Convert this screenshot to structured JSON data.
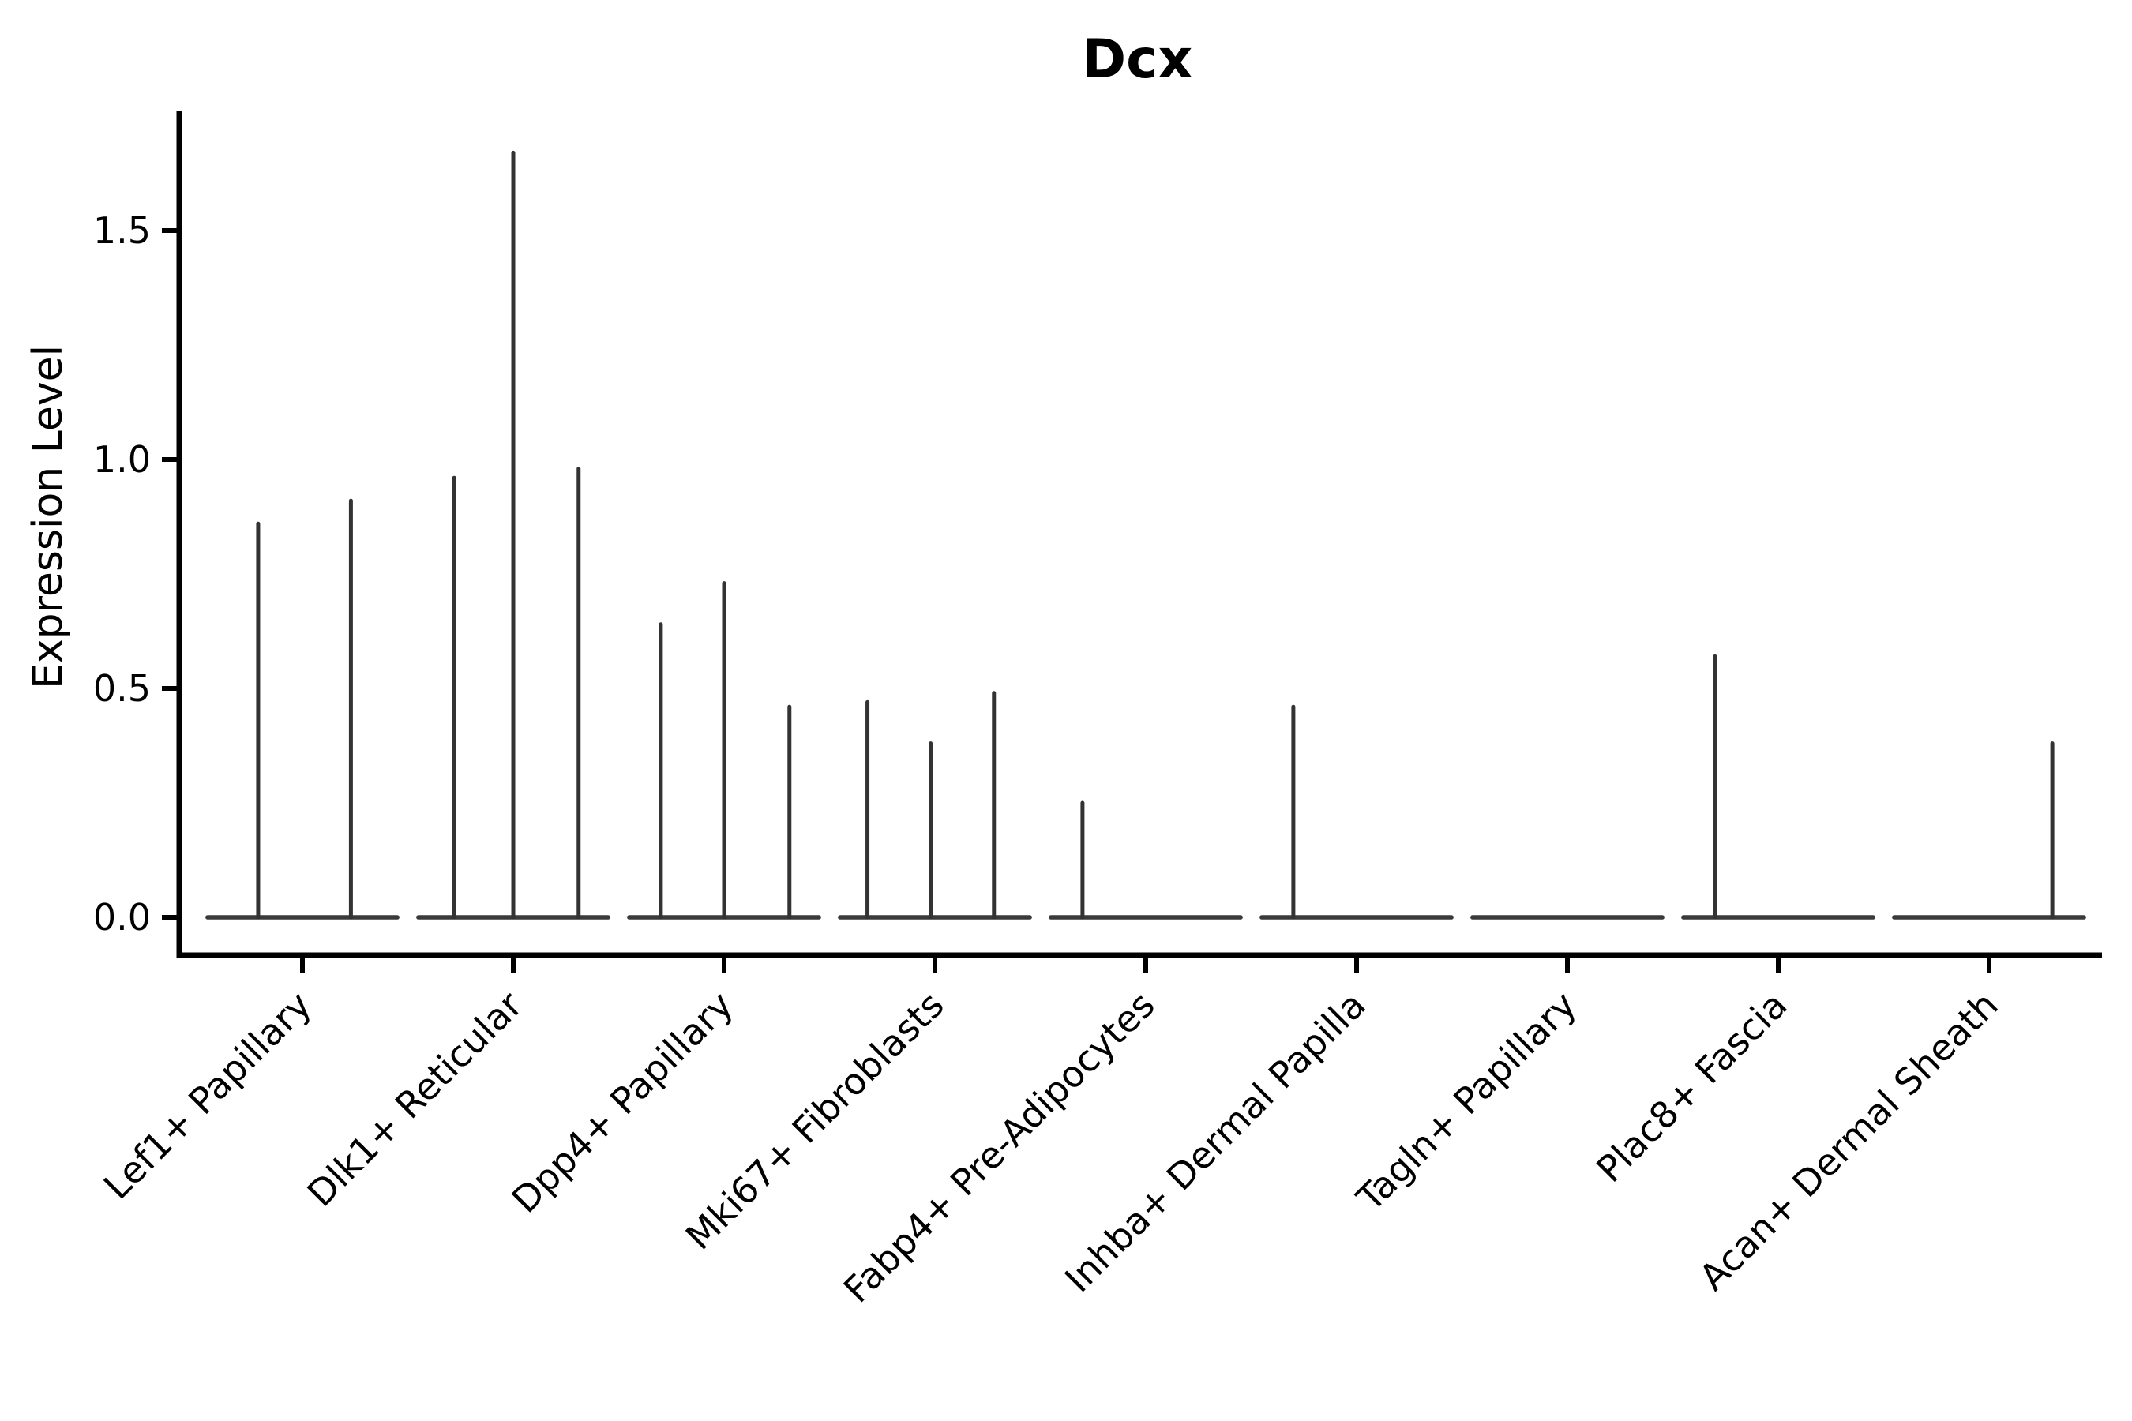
{
  "page": {
    "background": "#ffffff"
  },
  "chart": {
    "title": "Dcx",
    "ylabel": "Expression Level",
    "axis_color": "#000000",
    "violin_color": "#333333",
    "base_color": "#3a3a3a"
  },
  "chart_data": {
    "type": "violin",
    "title": "Dcx",
    "xlabel": "",
    "ylabel": "Expression Level",
    "ylim": [
      -0.08,
      1.76
    ],
    "grid": false,
    "legend": false,
    "ytick_values": [
      0.0,
      0.5,
      1.0,
      1.5
    ],
    "ytick_labels": [
      "0.0",
      "0.5",
      "1.0",
      "1.5"
    ],
    "categories": [
      "Lef1+ Papillary",
      "Dlk1+ Reticular",
      "Dpp4+ Papillary",
      "Mki67+ Fibroblasts",
      "Fabp4+ Pre-Adipocytes",
      "Inhba+ Dermal Papilla",
      "Tagln+ Papillary",
      "Plac8+ Fascia",
      "Acan+ Dermal Sheath"
    ],
    "baseline_value": 0.0,
    "base_halfwidth": 0.45,
    "violins": [
      {
        "category": "Lef1+ Papillary",
        "spikes": [
          {
            "pos": -0.21,
            "max": 0.86
          },
          {
            "pos": 0.23,
            "max": 0.91
          }
        ]
      },
      {
        "category": "Dlk1+ Reticular",
        "spikes": [
          {
            "pos": -0.28,
            "max": 0.96
          },
          {
            "pos": 0.0,
            "max": 1.67
          },
          {
            "pos": 0.31,
            "max": 0.98
          }
        ]
      },
      {
        "category": "Dpp4+ Papillary",
        "spikes": [
          {
            "pos": -0.3,
            "max": 0.64
          },
          {
            "pos": 0.0,
            "max": 0.73
          },
          {
            "pos": 0.31,
            "max": 0.46
          }
        ]
      },
      {
        "category": "Mki67+ Fibroblasts",
        "spikes": [
          {
            "pos": -0.32,
            "max": 0.47
          },
          {
            "pos": -0.02,
            "max": 0.38
          },
          {
            "pos": 0.28,
            "max": 0.49
          }
        ]
      },
      {
        "category": "Fabp4+ Pre-Adipocytes",
        "spikes": [
          {
            "pos": -0.3,
            "max": 0.25
          }
        ]
      },
      {
        "category": "Inhba+ Dermal Papilla",
        "spikes": [
          {
            "pos": -0.3,
            "max": 0.46
          }
        ]
      },
      {
        "category": "Tagln+ Papillary",
        "spikes": []
      },
      {
        "category": "Plac8+ Fascia",
        "spikes": [
          {
            "pos": -0.3,
            "max": 0.57
          }
        ]
      },
      {
        "category": "Acan+ Dermal Sheath",
        "spikes": [
          {
            "pos": 0.3,
            "max": 0.38
          }
        ]
      }
    ]
  }
}
